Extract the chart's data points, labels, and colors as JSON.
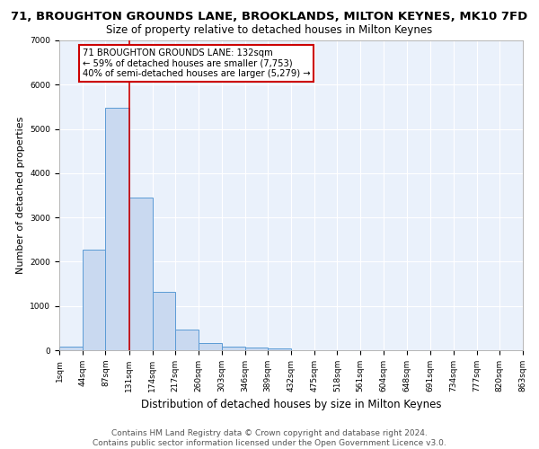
{
  "title": "71, BROUGHTON GROUNDS LANE, BROOKLANDS, MILTON KEYNES, MK10 7FD",
  "subtitle": "Size of property relative to detached houses in Milton Keynes",
  "xlabel": "Distribution of detached houses by size in Milton Keynes",
  "ylabel": "Number of detached properties",
  "bin_edges": [
    1,
    44,
    87,
    131,
    174,
    217,
    260,
    303,
    346,
    389,
    432,
    475,
    518,
    561,
    604,
    648,
    691,
    734,
    777,
    820,
    863
  ],
  "bar_heights": [
    75,
    2280,
    5470,
    3440,
    1310,
    460,
    165,
    90,
    55,
    40,
    0,
    0,
    0,
    0,
    0,
    0,
    0,
    0,
    0,
    0
  ],
  "bar_color": "#c9d9f0",
  "bar_edge_color": "#5b9bd5",
  "background_color": "#eaf1fb",
  "grid_color": "#ffffff",
  "property_size": 132,
  "red_line_color": "#cc0000",
  "annotation_text": "71 BROUGHTON GROUNDS LANE: 132sqm\n← 59% of detached houses are smaller (7,753)\n40% of semi-detached houses are larger (5,279) →",
  "annotation_box_color": "#ffffff",
  "annotation_box_edge_color": "#cc0000",
  "ylim": [
    0,
    7000
  ],
  "footer_line1": "Contains HM Land Registry data © Crown copyright and database right 2024.",
  "footer_line2": "Contains public sector information licensed under the Open Government Licence v3.0.",
  "title_fontsize": 9.5,
  "subtitle_fontsize": 8.5,
  "xlabel_fontsize": 8.5,
  "ylabel_fontsize": 8,
  "tick_label_fontsize": 6.5,
  "annotation_fontsize": 7.2,
  "footer_fontsize": 6.5
}
